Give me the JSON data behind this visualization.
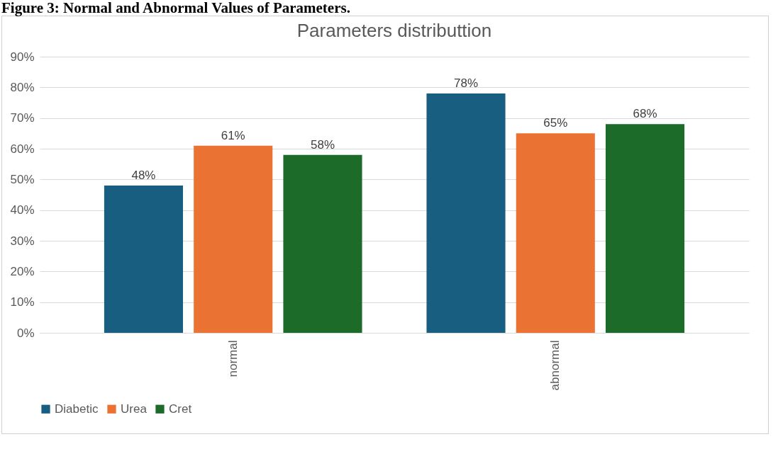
{
  "chart_data": {
    "type": "bar",
    "title": "Parameters distributtion",
    "annotations": [
      "Figure 3: Normal and Abnormal Values of Parameters."
    ],
    "categories": [
      "normal",
      "abnormal"
    ],
    "series": [
      {
        "name": "Diabetic",
        "color": "#175e80",
        "values": [
          48,
          78
        ],
        "value_labels": [
          "48%",
          "78%"
        ]
      },
      {
        "name": "Urea",
        "color": "#ea7233",
        "values": [
          61,
          65
        ],
        "value_labels": [
          "61%",
          "65%"
        ]
      },
      {
        "name": "Cret",
        "color": "#1d6b29",
        "values": [
          58,
          68
        ],
        "value_labels": [
          "58%",
          "68%"
        ]
      }
    ],
    "ylim": [
      0,
      90
    ],
    "yticks": [
      {
        "value": 0,
        "label": "0%"
      },
      {
        "value": 10,
        "label": "10%"
      },
      {
        "value": 20,
        "label": "20%"
      },
      {
        "value": 30,
        "label": "30%"
      },
      {
        "value": 40,
        "label": "40%"
      },
      {
        "value": 50,
        "label": "50%"
      },
      {
        "value": 60,
        "label": "60%"
      },
      {
        "value": 70,
        "label": "70%"
      },
      {
        "value": 80,
        "label": "80%"
      },
      {
        "value": 90,
        "label": "90%"
      }
    ],
    "grid": "y",
    "legend": "bottom"
  }
}
